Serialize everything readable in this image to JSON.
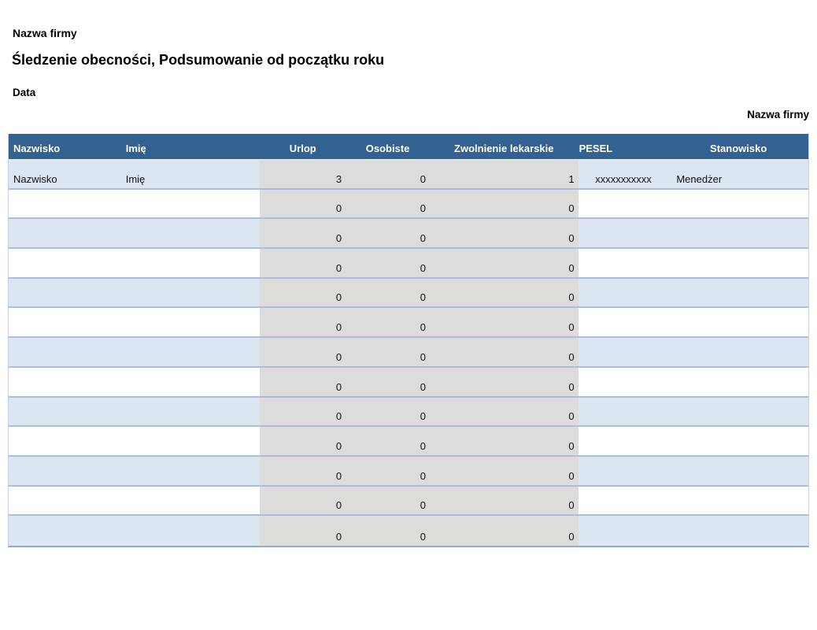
{
  "page": {
    "company_name_top": "Nazwa firmy",
    "title": "Śledzenie obecności, Podsumowanie od początku roku",
    "date_label": "Data",
    "company_name_right": "Nazwa firmy"
  },
  "table": {
    "columns": [
      {
        "key": "nazwisko",
        "label": "Nazwisko"
      },
      {
        "key": "imie",
        "label": "Imię"
      },
      {
        "key": "urlop",
        "label": "Urlop"
      },
      {
        "key": "osobiste",
        "label": "Osobiste"
      },
      {
        "key": "zwolnienie",
        "label": "Zwolnienie lekarskie"
      },
      {
        "key": "pesel",
        "label": "PESEL"
      },
      {
        "key": "stanowisko",
        "label": "Stanowisko"
      }
    ],
    "rows": [
      {
        "nazwisko": "Nazwisko",
        "imie": "Imię",
        "urlop": "3",
        "osobiste": "0",
        "zwolnienie": "1",
        "pesel": "xxxxxxxxxxx",
        "stanowisko": "Menedżer"
      },
      {
        "nazwisko": "",
        "imie": "",
        "urlop": "0",
        "osobiste": "0",
        "zwolnienie": "0",
        "pesel": "",
        "stanowisko": ""
      },
      {
        "nazwisko": "",
        "imie": "",
        "urlop": "0",
        "osobiste": "0",
        "zwolnienie": "0",
        "pesel": "",
        "stanowisko": ""
      },
      {
        "nazwisko": "",
        "imie": "",
        "urlop": "0",
        "osobiste": "0",
        "zwolnienie": "0",
        "pesel": "",
        "stanowisko": ""
      },
      {
        "nazwisko": "",
        "imie": "",
        "urlop": "0",
        "osobiste": "0",
        "zwolnienie": "0",
        "pesel": "",
        "stanowisko": ""
      },
      {
        "nazwisko": "",
        "imie": "",
        "urlop": "0",
        "osobiste": "0",
        "zwolnienie": "0",
        "pesel": "",
        "stanowisko": ""
      },
      {
        "nazwisko": "",
        "imie": "",
        "urlop": "0",
        "osobiste": "0",
        "zwolnienie": "0",
        "pesel": "",
        "stanowisko": ""
      },
      {
        "nazwisko": "",
        "imie": "",
        "urlop": "0",
        "osobiste": "0",
        "zwolnienie": "0",
        "pesel": "",
        "stanowisko": ""
      },
      {
        "nazwisko": "",
        "imie": "",
        "urlop": "0",
        "osobiste": "0",
        "zwolnienie": "0",
        "pesel": "",
        "stanowisko": ""
      },
      {
        "nazwisko": "",
        "imie": "",
        "urlop": "0",
        "osobiste": "0",
        "zwolnienie": "0",
        "pesel": "",
        "stanowisko": ""
      },
      {
        "nazwisko": "",
        "imie": "",
        "urlop": "0",
        "osobiste": "0",
        "zwolnienie": "0",
        "pesel": "",
        "stanowisko": ""
      },
      {
        "nazwisko": "",
        "imie": "",
        "urlop": "0",
        "osobiste": "0",
        "zwolnienie": "0",
        "pesel": "",
        "stanowisko": ""
      },
      {
        "nazwisko": "",
        "imie": "",
        "urlop": "0",
        "osobiste": "0",
        "zwolnienie": "0",
        "pesel": "",
        "stanowisko": ""
      }
    ]
  },
  "colors": {
    "header_bg": "#336190",
    "header_text": "#ffffff",
    "row_alt_bg": "#dce6f1",
    "band_bg": "#dcdcda",
    "row_separator": "#aabfde",
    "table_bottom_border": "#90abce"
  }
}
